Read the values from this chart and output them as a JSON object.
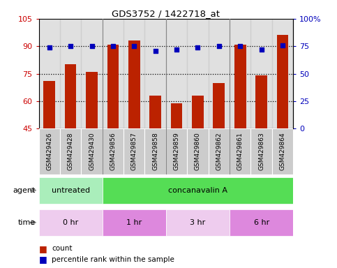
{
  "title": "GDS3752 / 1422718_at",
  "samples": [
    "GSM429426",
    "GSM429428",
    "GSM429430",
    "GSM429856",
    "GSM429857",
    "GSM429858",
    "GSM429859",
    "GSM429860",
    "GSM429862",
    "GSM429861",
    "GSM429863",
    "GSM429864"
  ],
  "counts": [
    71,
    80,
    76,
    91,
    93,
    63,
    59,
    63,
    70,
    91,
    74,
    96
  ],
  "percentile_ranks": [
    74,
    75,
    75,
    75,
    75,
    71,
    72,
    74,
    75,
    75,
    72,
    76
  ],
  "ylim_left": [
    45,
    105
  ],
  "ylim_right": [
    0,
    100
  ],
  "yticks_left": [
    45,
    60,
    75,
    90,
    105
  ],
  "yticks_right": [
    0,
    25,
    50,
    75,
    100
  ],
  "bar_color": "#bb2200",
  "dot_color": "#0000bb",
  "grid_color": "#000000",
  "agent_groups": [
    {
      "label": "untreated",
      "start": 0,
      "end": 3,
      "color": "#aaeebb"
    },
    {
      "label": "concanavalin A",
      "start": 3,
      "end": 12,
      "color": "#55dd55"
    }
  ],
  "time_groups": [
    {
      "label": "0 hr",
      "start": 0,
      "end": 3,
      "color": "#eeccee"
    },
    {
      "label": "1 hr",
      "start": 3,
      "end": 6,
      "color": "#dd88dd"
    },
    {
      "label": "3 hr",
      "start": 6,
      "end": 9,
      "color": "#eeccee"
    },
    {
      "label": "6 hr",
      "start": 9,
      "end": 12,
      "color": "#dd88dd"
    }
  ],
  "group_dividers": [
    2.5,
    5.5,
    8.5
  ],
  "ylabel_left_color": "#cc0000",
  "ylabel_right_color": "#0000bb",
  "legend_count_color": "#bb2200",
  "legend_dot_color": "#0000bb"
}
